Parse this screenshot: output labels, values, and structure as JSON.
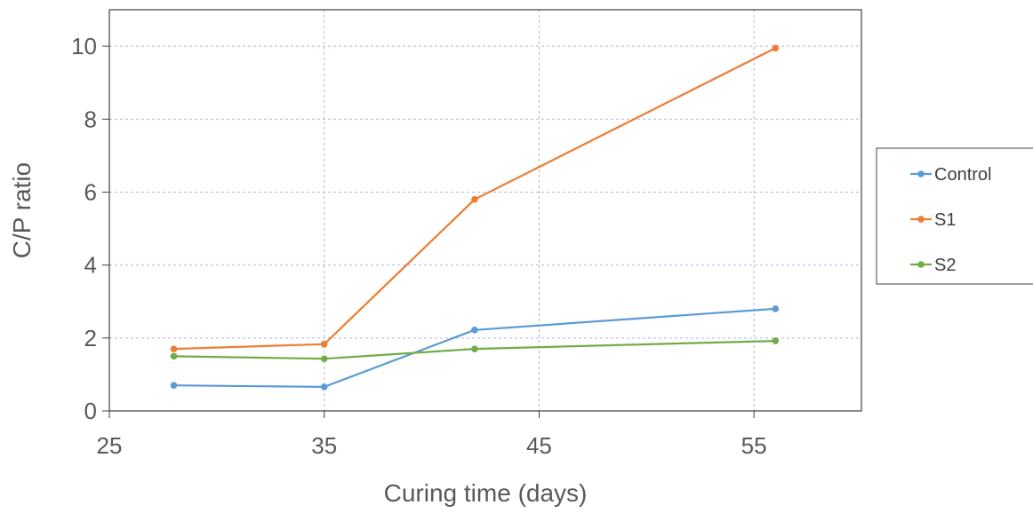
{
  "chart_data": {
    "type": "line",
    "title": "",
    "xlabel": "Curing time (days)",
    "ylabel": "C/P ratio",
    "xlim": [
      25,
      60
    ],
    "ylim": [
      0,
      11
    ],
    "xticks": [
      25,
      35,
      45,
      55
    ],
    "yticks": [
      0,
      2,
      4,
      6,
      8,
      10
    ],
    "grid": true,
    "legend_position": "right",
    "x": [
      28,
      35,
      42,
      56
    ],
    "series": [
      {
        "name": "Control",
        "color": "#5b9bd5",
        "values": [
          0.7,
          0.66,
          2.22,
          2.8
        ]
      },
      {
        "name": "S1",
        "color": "#ed7d31",
        "values": [
          1.7,
          1.83,
          5.8,
          9.95
        ]
      },
      {
        "name": "S2",
        "color": "#70ad47",
        "values": [
          1.5,
          1.43,
          1.7,
          1.92
        ]
      }
    ]
  }
}
